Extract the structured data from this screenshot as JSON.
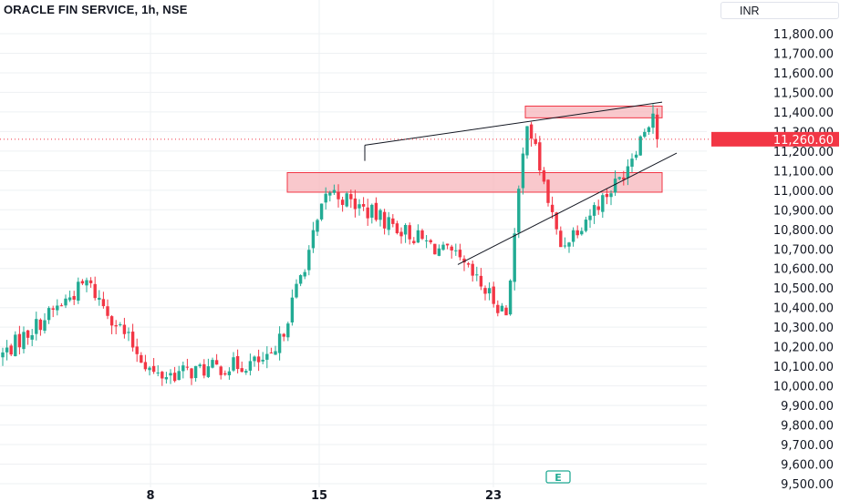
{
  "header": {
    "title": "ORACLE FIN SERVICE, 1h, NSE",
    "currency": "INR"
  },
  "colors": {
    "up": "#22ab94",
    "down": "#f23645",
    "zone_fill": "#f7b6bb",
    "zone_stroke": "#f23645",
    "trendline": "#131722",
    "grid": "#eef0f3"
  },
  "chart_data": {
    "type": "candlestick",
    "symbol": "ORACLE FIN SERVICE",
    "interval": "1h",
    "exchange": "NSE",
    "y_axis": {
      "min": 9500,
      "max": 11800,
      "ticks": [
        "11,800.00",
        "11,700.00",
        "11,600.00",
        "11,500.00",
        "11,400.00",
        "11,300.00",
        "11,200.00",
        "11,100.00",
        "11,000.00",
        "10,900.00",
        "10,800.00",
        "10,700.00",
        "10,600.00",
        "10,500.00",
        "10,400.00",
        "10,300.00",
        "10,200.00",
        "10,100.00",
        "10,000.00",
        "9,900.00",
        "9,800.00",
        "9,700.00",
        "9,600.00",
        "9,500.00"
      ]
    },
    "x_axis": {
      "ticks": [
        "8",
        "15",
        "23"
      ]
    },
    "last_price": 11260.6,
    "last_price_label": "11,260.60",
    "event_marker": "E",
    "zones": [
      {
        "name": "resistance",
        "low": 11370,
        "high": 11430
      },
      {
        "name": "support",
        "low": 10990,
        "high": 11090
      }
    ],
    "trendlines": [
      {
        "name": "upper",
        "from_price": 11230,
        "to_price": 11450
      },
      {
        "name": "lower",
        "from_price": 10620,
        "to_price": 11190
      },
      {
        "name": "upper-left-tick",
        "from_price": 11150,
        "to_price": 11230
      }
    ],
    "key_points": [
      10150,
      10530,
      10050,
      10130,
      11000,
      10650,
      10370,
      11370,
      10710,
      11060,
      11420,
      11260.6
    ]
  }
}
